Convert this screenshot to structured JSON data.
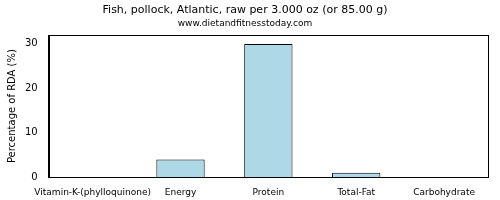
{
  "chart_data": {
    "type": "bar",
    "title": "Fish, pollock, Atlantic, raw per 3.000 oz (or 85.00 g)",
    "subtitle": "www.dietandfitnesstoday.com",
    "y_label": "Percentage of RDA (%)",
    "categories": [
      "Vitamin-K-(phylloquinone)",
      "Energy",
      "Protein",
      "Total-Fat",
      "Carbohydrate"
    ],
    "values": [
      0,
      4,
      30,
      1,
      0
    ],
    "color": "#add8e6",
    "ylim": [
      0,
      32
    ],
    "yticks": [
      0,
      10,
      20,
      30
    ],
    "grid": false
  }
}
